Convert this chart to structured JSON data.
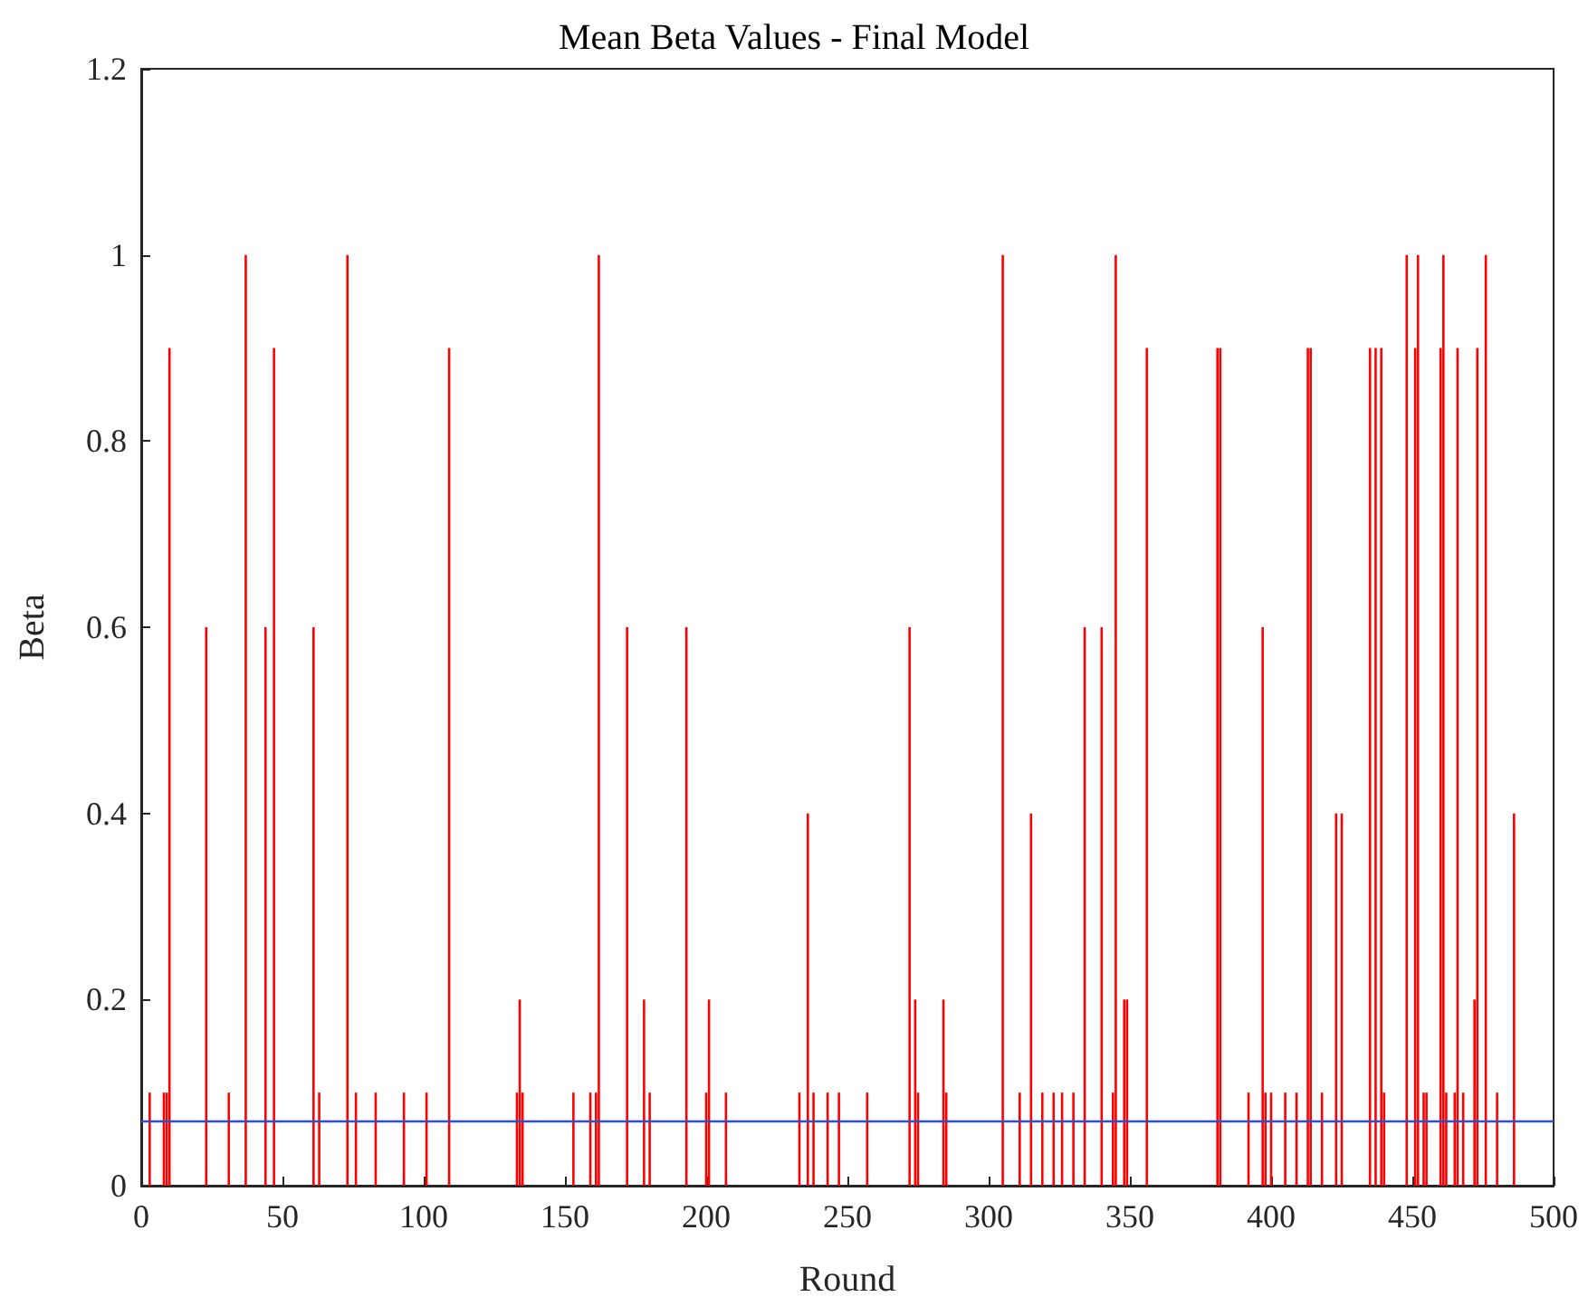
{
  "chart_data": {
    "type": "bar",
    "title": "Mean Beta Values - Final Model",
    "xlabel": "Round",
    "ylabel": "Beta",
    "x": [
      3,
      8,
      9,
      10,
      23,
      31,
      37,
      44,
      47,
      61,
      63,
      73,
      76,
      83,
      93,
      101,
      109,
      133,
      134,
      135,
      153,
      159,
      161,
      162,
      172,
      178,
      180,
      193,
      200,
      201,
      207,
      233,
      236,
      238,
      243,
      247,
      257,
      272,
      274,
      275,
      284,
      285,
      305,
      311,
      315,
      319,
      323,
      326,
      330,
      334,
      340,
      344,
      345,
      348,
      349,
      356,
      381,
      382,
      392,
      397,
      398,
      400,
      405,
      409,
      413,
      414,
      418,
      423,
      425,
      435,
      437,
      439,
      440,
      448,
      451,
      452,
      454,
      455,
      460,
      461,
      462,
      465,
      466,
      468,
      472,
      473,
      476,
      480,
      486
    ],
    "series": [
      {
        "color": "#ff0000",
        "values": [
          0.1,
          0.1,
          0.1,
          0.9,
          0.6,
          0.1,
          1,
          0.6,
          0.9,
          0.6,
          0.1,
          1,
          0.1,
          0.1,
          0.1,
          0.1,
          0.9,
          0.1,
          0.2,
          0.1,
          0.1,
          0.1,
          0.1,
          1,
          0.6,
          0.2,
          0.1,
          0.6,
          0.1,
          0.2,
          0.1,
          0.1,
          0.4,
          0.1,
          0.1,
          0.1,
          0.1,
          0.6,
          0.2,
          0.1,
          0.2,
          0.1,
          1,
          0.1,
          0.4,
          0.1,
          0.1,
          0.1,
          0.1,
          0.6,
          0.6,
          0.1,
          1,
          0.2,
          0.2,
          0.9,
          0.9,
          0.9,
          0.1,
          0.6,
          0.1,
          0.1,
          0.1,
          0.1,
          0.9,
          0.9,
          0.1,
          0.4,
          0.4,
          0.9,
          0.9,
          0.9,
          0.1,
          1,
          0.9,
          1,
          0.1,
          0.1,
          0.9,
          1,
          0.1,
          0.1,
          0.9,
          0.1,
          0.2,
          0.9,
          1,
          0.1,
          0.4
        ]
      }
    ],
    "xlim": [
      0,
      500
    ],
    "xticks": [
      0,
      50,
      100,
      150,
      200,
      250,
      300,
      350,
      400,
      450,
      500
    ],
    "ylim": [
      0,
      1.2
    ],
    "yticks": [
      0,
      0.2,
      0.4,
      0.6,
      0.8,
      1,
      1.2
    ],
    "ref_lines": [
      {
        "axis": "y",
        "value": 0.07,
        "color": "#2f4fc4"
      }
    ]
  }
}
